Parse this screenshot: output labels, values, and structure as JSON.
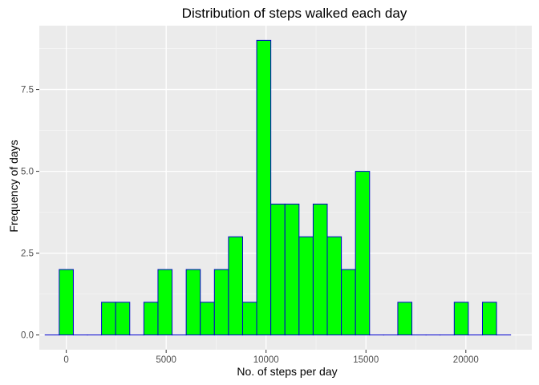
{
  "chart_data": {
    "type": "bar",
    "title": "Distribution of steps walked each day",
    "xlabel": "No. of steps per day",
    "ylabel": "Frequency of days",
    "x_ticks": [
      0,
      5000,
      10000,
      15000,
      20000
    ],
    "y_ticks": [
      0.0,
      2.5,
      5.0,
      7.5
    ],
    "x_tick_labels": [
      "0",
      "5000",
      "10000",
      "15000",
      "20000"
    ],
    "y_tick_labels": [
      "0.0",
      "2.5",
      "5.0",
      "7.5"
    ],
    "xlim": [
      -1350,
      23300
    ],
    "ylim": [
      -0.45,
      9.45
    ],
    "bin_width": 706.1,
    "bin_centers": [
      -706.1,
      0,
      706.1,
      1412.2,
      2118.3,
      2824.4,
      3530.5,
      4236.6,
      4942.8,
      5648.9,
      6355.0,
      7061.1,
      7767.2,
      8473.3,
      9179.4,
      9885.5,
      10591.6,
      11297.7,
      12003.8,
      12709.9,
      13416.1,
      14122.2,
      14828.3,
      15534.4,
      16240.5,
      16946.6,
      17652.7,
      18358.8,
      19064.9,
      19771.0,
      20477.1,
      21183.2,
      21889.3
    ],
    "values": [
      0,
      2,
      0,
      0,
      1,
      1,
      0,
      1,
      2,
      0,
      2,
      1,
      2,
      3,
      1,
      9,
      4,
      4,
      3,
      4,
      3,
      2,
      5,
      0,
      0,
      1,
      0,
      0,
      0,
      1,
      0,
      1,
      0
    ],
    "grid": true,
    "colors": {
      "panel_background": "#ebebeb",
      "grid_major": "#ffffff",
      "grid_minor": "#f5f5f5",
      "bar_fill": "#00ff00",
      "bar_outline": "#0000cd"
    }
  }
}
